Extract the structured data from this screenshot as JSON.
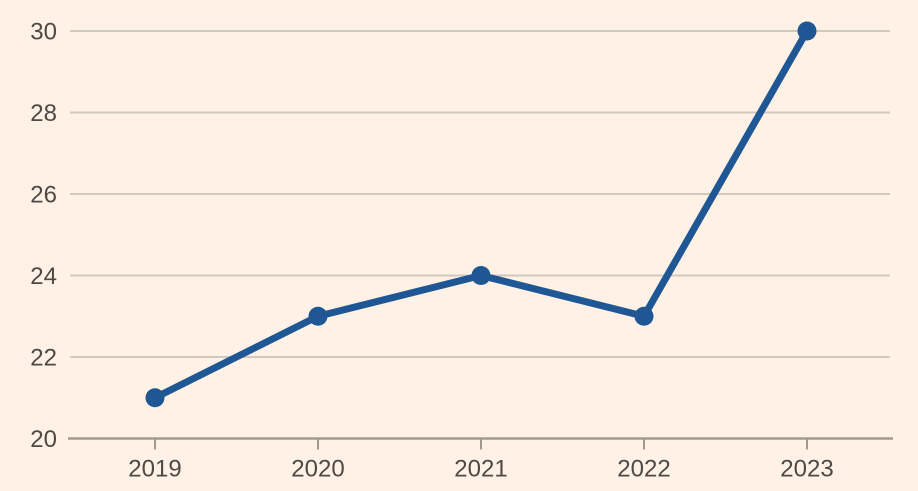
{
  "chart_data": {
    "type": "line",
    "title": "",
    "xlabel": "",
    "ylabel": "",
    "categories": [
      "2019",
      "2020",
      "2021",
      "2022",
      "2023"
    ],
    "values": [
      21,
      23,
      24,
      23,
      30
    ],
    "ylim": [
      20,
      30
    ],
    "yticks": [
      20,
      22,
      24,
      26,
      28,
      30
    ],
    "grid": "horizontal",
    "legend": "none",
    "marker": "filled-circle",
    "colors": {
      "background": "#fff1e5",
      "line": "#1f5794",
      "marker": "#1f5794",
      "gridline": "#d2c9be",
      "axis": "#a39a8f",
      "tick_text": "#4d4945"
    }
  }
}
